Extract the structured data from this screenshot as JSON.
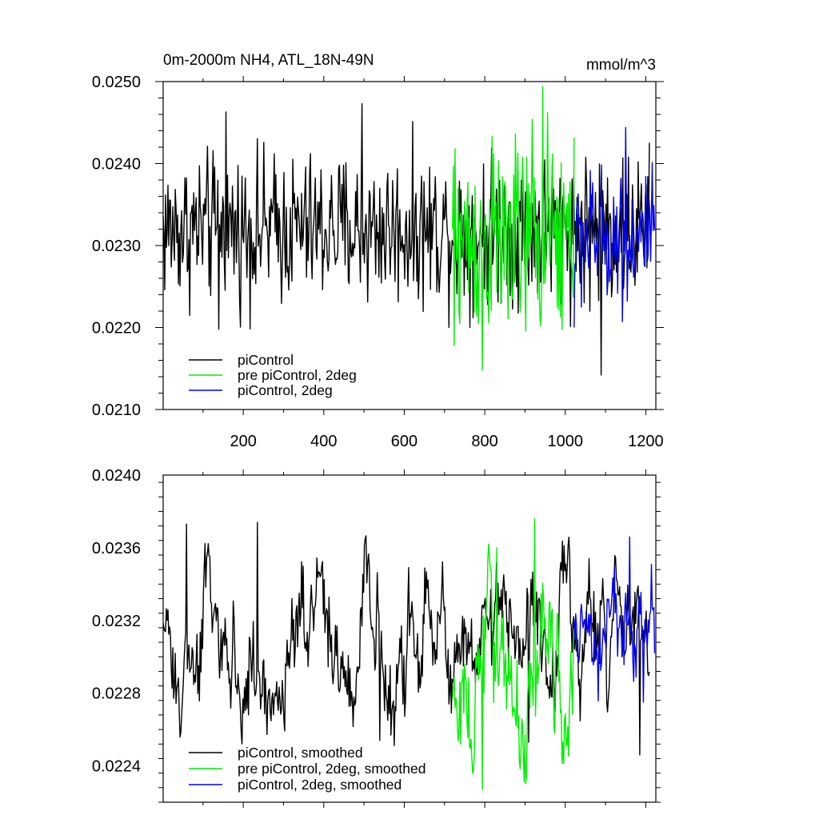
{
  "chart_data": [
    {
      "type": "line",
      "title": "0m-2000m NH4, ATL_18N-49N",
      "units": "mmol/m^3",
      "xlim": [
        1,
        1225
      ],
      "ylim": [
        0.021,
        0.025
      ],
      "x_ticks": [
        200,
        400,
        600,
        800,
        1000,
        1200
      ],
      "x_tick_labels": [
        "200",
        "400",
        "600",
        "800",
        "1000",
        "1200"
      ],
      "y_ticks": [
        0.021,
        0.022,
        0.023,
        0.024,
        0.025
      ],
      "y_tick_labels": [
        "0.0210",
        "0.0220",
        "0.0230",
        "0.0240",
        "0.0250"
      ],
      "grid": false,
      "legend_position": "bottom-left",
      "series": [
        {
          "name": "piControl",
          "color": "#000000",
          "x_start": 1,
          "x_end": 1210,
          "mean": 0.0232,
          "spread": 0.00045,
          "extremes": [
            [
              157,
              0.02463
            ],
            [
              495,
              0.02473
            ],
            [
              140,
              0.02198
            ],
            [
              1090,
              0.02142
            ]
          ]
        },
        {
          "name": "pre piControl, 2deg",
          "color": "#00ee00",
          "x_start": 720,
          "x_end": 1022,
          "mean": 0.02305,
          "spread": 0.0006,
          "extremes": [
            [
              945,
              0.02494
            ],
            [
              795,
              0.02148
            ],
            [
              725,
              0.02178
            ],
            [
              918,
              0.02454
            ]
          ]
        },
        {
          "name": "piControl, 2deg",
          "color": "#0000ee",
          "x_start": 1022,
          "x_end": 1222,
          "mean": 0.0231,
          "spread": 0.0004,
          "extremes": [
            [
              1150,
              0.02444
            ],
            [
              1022,
              0.022
            ]
          ]
        }
      ]
    },
    {
      "type": "line",
      "xlim": [
        1,
        1225
      ],
      "ylim": [
        0.0222,
        0.024
      ],
      "x_ticks": [
        200,
        400,
        600,
        800,
        1000,
        1200
      ],
      "y_ticks": [
        0.0224,
        0.0228,
        0.0232,
        0.0236,
        0.024
      ],
      "y_tick_labels": [
        "0.0224",
        "0.0228",
        "0.0232",
        "0.0236",
        "0.0240"
      ],
      "grid": false,
      "legend_position": "bottom-left",
      "series": [
        {
          "name": "piControl, smoothed",
          "color": "#000000",
          "x_start": 1,
          "x_end": 1210,
          "mean": 0.0231,
          "spread": 0.0003,
          "extremes": [
            [
              60,
              0.02373
            ],
            [
              235,
              0.02374
            ],
            [
              540,
              0.02254
            ],
            [
              910,
              0.02253
            ],
            [
              1185,
              0.02246
            ]
          ]
        },
        {
          "name": "pre piControl, 2deg, smoothed",
          "color": "#00ee00",
          "x_start": 720,
          "x_end": 1022,
          "mean": 0.023,
          "spread": 0.00035,
          "extremes": [
            [
              925,
              0.02376
            ],
            [
              795,
              0.02227
            ],
            [
              830,
              0.0236
            ]
          ]
        },
        {
          "name": "piControl, 2deg, smoothed",
          "color": "#0000ee",
          "x_start": 1022,
          "x_end": 1222,
          "mean": 0.02315,
          "spread": 0.00028,
          "extremes": [
            [
              1160,
              0.02366
            ],
            [
              1195,
              0.02275
            ]
          ]
        }
      ]
    }
  ]
}
